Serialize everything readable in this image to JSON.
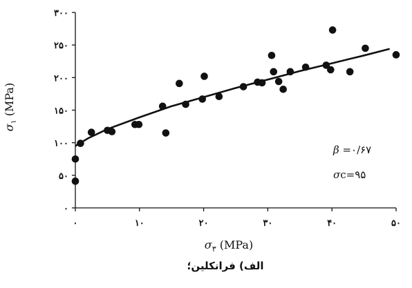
{
  "chart_data": {
    "type": "scatter",
    "x_ticks": [
      "۰",
      "۱۰",
      "۲۰",
      "۳۰",
      "۴۰",
      "۵۰"
    ],
    "y_ticks": [
      "۰",
      "۵۰",
      "۱۰۰",
      "۱۵۰",
      "۲۰۰",
      "۲۵۰",
      "۳۰۰"
    ],
    "xlim": [
      0,
      50
    ],
    "ylim": [
      0,
      300
    ],
    "grid": false,
    "xlabel": {
      "symbol": "σ",
      "subscript": "۳",
      "unit": "(MPa)"
    },
    "ylabel": {
      "symbol": "σ",
      "subscript": "۱",
      "unit": "(MPa)"
    },
    "points": [
      [
        0,
        41
      ],
      [
        0,
        75
      ],
      [
        0.8,
        99
      ],
      [
        2.5,
        116
      ],
      [
        5.0,
        119
      ],
      [
        5.7,
        117
      ],
      [
        9.3,
        128
      ],
      [
        9.9,
        128
      ],
      [
        13.6,
        156
      ],
      [
        14.1,
        115
      ],
      [
        16.2,
        191
      ],
      [
        17.2,
        159
      ],
      [
        19.8,
        167
      ],
      [
        20.1,
        202
      ],
      [
        22.4,
        171
      ],
      [
        26.2,
        186
      ],
      [
        28.4,
        193
      ],
      [
        29.1,
        192
      ],
      [
        30.6,
        234
      ],
      [
        30.9,
        209
      ],
      [
        31.7,
        194
      ],
      [
        32.4,
        182
      ],
      [
        33.5,
        209
      ],
      [
        35.9,
        216
      ],
      [
        39.1,
        219
      ],
      [
        39.8,
        212
      ],
      [
        40.1,
        273
      ],
      [
        42.8,
        209
      ],
      [
        45.2,
        245
      ],
      [
        50.0,
        235
      ]
    ],
    "fit_curve": [
      [
        0,
        95
      ],
      [
        2,
        107
      ],
      [
        5,
        121
      ],
      [
        10,
        139
      ],
      [
        15,
        156
      ],
      [
        20,
        170
      ],
      [
        25,
        184
      ],
      [
        30,
        197
      ],
      [
        35,
        210
      ],
      [
        40,
        222
      ],
      [
        45,
        234
      ],
      [
        49,
        244
      ]
    ],
    "annotations": {
      "beta": {
        "symbol": "β",
        "text": " =۰/۶۷"
      },
      "sigma_c": {
        "symbol": "σ",
        "text": "c=۹۵"
      }
    },
    "caption": "الف) فرانکلین؛"
  }
}
